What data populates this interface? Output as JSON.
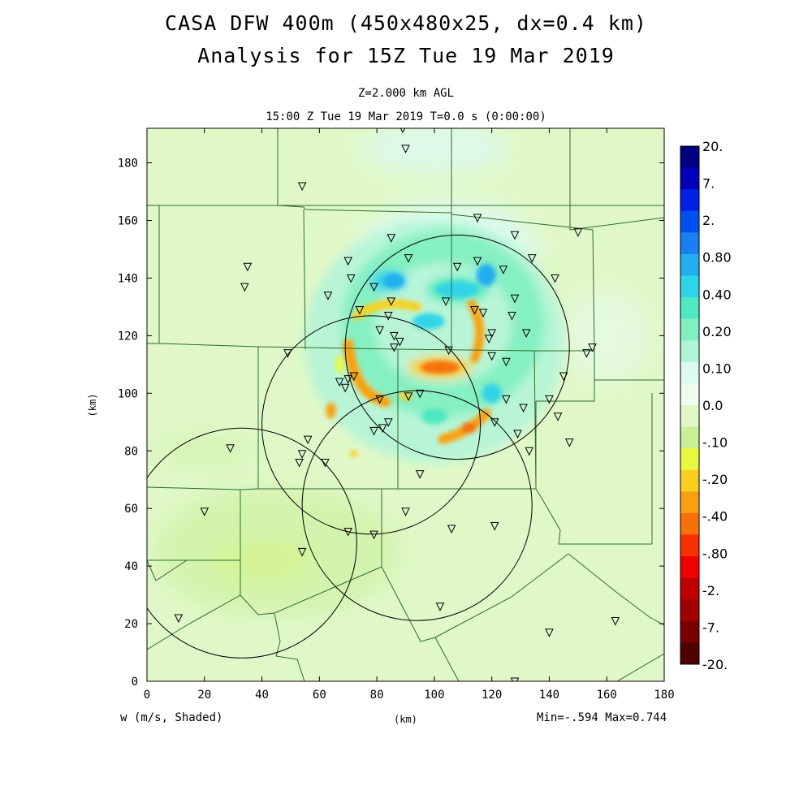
{
  "header": {
    "title_line1": "CASA DFW 400m (450x480x25, dx=0.4 km)",
    "title_line2": "Analysis for 15Z Tue 19 Mar 2019",
    "subtitle_line1": "Z=2.000 km AGL",
    "subtitle_line2": "15:00 Z Tue 19 Mar 2019   T=0.0 s (0:00:00)"
  },
  "footer": {
    "variable_label": "w (m/s, Shaded)",
    "xunit_label": "(km)",
    "minmax": "Min=-.594 Max=0.744"
  },
  "chart_data": {
    "type": "heatmap",
    "variable": "w",
    "units": "m/s",
    "xlabel": "(km)",
    "ylabel": "(km)",
    "xlim": [
      0,
      180
    ],
    "ylim": [
      0,
      192
    ],
    "xticks": [
      0,
      20,
      40,
      60,
      80,
      100,
      120,
      140,
      160,
      180
    ],
    "yticks": [
      0,
      20,
      40,
      60,
      80,
      100,
      120,
      140,
      160,
      180
    ],
    "colorbar": {
      "labels": [
        "20.",
        "7.",
        "2.",
        "0.80",
        "0.40",
        "0.20",
        "0.10",
        "0.0",
        "-.10",
        "-.20",
        "-.40",
        "-.80",
        "-2.",
        "-7.",
        "-20."
      ],
      "colors": [
        "#000080",
        "#0000b8",
        "#0020e8",
        "#0050f0",
        "#1880f0",
        "#20aef0",
        "#30d4e8",
        "#50e8c0",
        "#80f0c0",
        "#b0f4d8",
        "#dcfaee",
        "#f0fcf0",
        "#e0f8c8",
        "#c8f098",
        "#e8f840",
        "#f8d020",
        "#f8a010",
        "#f87008",
        "#f83000",
        "#f00000",
        "#c00000",
        "#a00000",
        "#780000",
        "#500000"
      ]
    },
    "min": -0.594,
    "max": 0.744,
    "radar_circles": [
      {
        "cx": 108,
        "cy": 116,
        "r": 39
      },
      {
        "cx": 78,
        "cy": 89,
        "r": 38
      },
      {
        "cx": 94,
        "cy": 61,
        "r": 40
      },
      {
        "cx": 33,
        "cy": 48,
        "r": 40
      }
    ],
    "stations": [
      [
        89,
        192
      ],
      [
        90,
        185
      ],
      [
        54,
        172
      ],
      [
        115,
        161
      ],
      [
        128,
        155
      ],
      [
        150,
        156
      ],
      [
        35,
        144
      ],
      [
        34,
        137
      ],
      [
        85,
        154
      ],
      [
        91,
        147
      ],
      [
        70,
        146
      ],
      [
        71,
        140
      ],
      [
        108,
        144
      ],
      [
        115,
        146
      ],
      [
        124,
        143
      ],
      [
        134,
        147
      ],
      [
        142,
        140
      ],
      [
        79,
        137
      ],
      [
        63,
        134
      ],
      [
        85,
        132
      ],
      [
        104,
        132
      ],
      [
        74,
        129
      ],
      [
        84,
        127
      ],
      [
        114,
        129
      ],
      [
        117,
        128
      ],
      [
        127,
        127
      ],
      [
        128,
        133
      ],
      [
        81,
        122
      ],
      [
        86,
        120
      ],
      [
        88,
        118
      ],
      [
        86,
        116
      ],
      [
        119,
        119
      ],
      [
        120,
        121
      ],
      [
        132,
        121
      ],
      [
        105,
        115
      ],
      [
        120,
        113
      ],
      [
        125,
        111
      ],
      [
        153,
        114
      ],
      [
        155,
        116
      ],
      [
        49,
        114
      ],
      [
        145,
        106
      ],
      [
        67,
        104
      ],
      [
        70,
        105
      ],
      [
        72,
        106
      ],
      [
        69,
        102
      ],
      [
        81,
        98
      ],
      [
        91,
        99
      ],
      [
        95,
        100
      ],
      [
        125,
        98
      ],
      [
        131,
        95
      ],
      [
        140,
        98
      ],
      [
        143,
        92
      ],
      [
        84,
        90
      ],
      [
        82,
        88
      ],
      [
        79,
        87
      ],
      [
        121,
        90
      ],
      [
        129,
        86
      ],
      [
        147,
        83
      ],
      [
        56,
        84
      ],
      [
        54,
        79
      ],
      [
        29,
        81
      ],
      [
        133,
        80
      ],
      [
        53,
        76
      ],
      [
        62,
        76
      ],
      [
        95,
        72
      ],
      [
        20,
        59
      ],
      [
        90,
        59
      ],
      [
        70,
        52
      ],
      [
        79,
        51
      ],
      [
        106,
        53
      ],
      [
        121,
        54
      ],
      [
        54,
        45
      ],
      [
        102,
        26
      ],
      [
        140,
        17
      ],
      [
        163,
        21
      ],
      [
        128,
        0
      ],
      [
        11,
        22
      ]
    ],
    "features": {
      "convective_ring_center": [
        100,
        118
      ],
      "strongest_updraft": [
        108,
        136
      ],
      "strongest_downdraft": [
        102,
        109
      ],
      "weak_downdraft_region": [
        45,
        42
      ]
    }
  }
}
